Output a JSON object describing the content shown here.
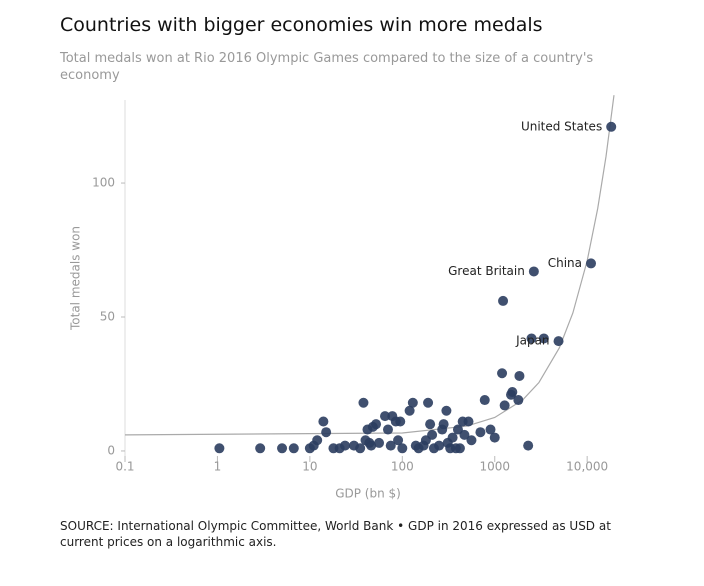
{
  "chart_data": {
    "type": "scatter",
    "title": "Countries with bigger economies win more medals",
    "subtitle": "Total medals won at Rio 2016 Olympic Games compared to the size of a country's economy",
    "x_label": "GDP (bn $)",
    "y_label": "Total medals won",
    "source": "SOURCE: International Olympic Committee, World Bank • GDP in 2016 expressed as USD at current prices on a logarithmic axis.",
    "x_scale": "log",
    "xlim": [
      0.1,
      20000
    ],
    "ylim": [
      -3,
      131
    ],
    "xticks": [
      0.1,
      1,
      10,
      100,
      1000,
      {
        "value": 10000,
        "label": "10,000"
      }
    ],
    "yticks": [
      0,
      50,
      100
    ],
    "color": "#2b3d5f",
    "x": [
      1.05,
      2.9,
      5,
      6.7,
      10,
      11,
      12,
      14,
      15,
      18,
      21,
      24,
      30,
      35,
      38,
      40,
      42,
      44,
      46,
      48,
      52,
      56,
      65,
      70,
      75,
      78,
      85,
      90,
      95,
      100,
      120,
      130,
      140,
      150,
      170,
      180,
      190,
      200,
      210,
      220,
      250,
      270,
      280,
      300,
      310,
      330,
      350,
      380,
      400,
      420,
      450,
      470,
      520,
      560,
      700,
      780,
      900,
      1000,
      1200,
      1230,
      1280,
      1500,
      1550,
      1800,
      1850,
      2300,
      2500,
      3400,
      4900,
      2650,
      11000,
      18200
    ],
    "values": [
      1,
      1,
      1,
      1,
      1,
      2,
      4,
      11,
      7,
      1,
      1,
      2,
      2,
      1,
      18,
      4,
      8,
      3,
      2,
      9,
      10,
      3,
      13,
      8,
      2,
      13,
      11,
      4,
      11,
      1,
      15,
      18,
      2,
      1,
      2,
      4,
      18,
      10,
      6,
      1,
      2,
      8,
      10,
      15,
      3,
      1,
      5,
      1,
      8,
      1,
      11,
      6,
      11,
      4,
      7,
      19,
      8,
      5,
      29,
      56,
      17,
      21,
      22,
      19,
      28,
      2,
      42,
      42,
      41,
      67,
      70,
      121
    ],
    "labels": [
      null,
      null,
      null,
      null,
      null,
      null,
      null,
      null,
      null,
      null,
      null,
      null,
      null,
      null,
      null,
      null,
      null,
      null,
      null,
      null,
      null,
      null,
      null,
      null,
      null,
      null,
      null,
      null,
      null,
      null,
      null,
      null,
      null,
      null,
      null,
      null,
      null,
      null,
      null,
      null,
      null,
      null,
      null,
      null,
      null,
      null,
      null,
      null,
      null,
      null,
      null,
      null,
      null,
      null,
      null,
      null,
      null,
      null,
      null,
      null,
      null,
      null,
      null,
      null,
      null,
      null,
      null,
      null,
      "Japan",
      "Great Britain",
      "China",
      "United States"
    ],
    "trend": {
      "color": "#aaaaaa",
      "x": [
        0.1,
        100,
        500,
        1000,
        2000,
        3000,
        5000,
        7000,
        10000,
        13000,
        16000,
        19500
      ],
      "values": [
        6,
        6.7,
        9.3,
        12.5,
        19,
        25.5,
        38.5,
        51.5,
        71,
        90.5,
        110,
        132.8
      ]
    }
  }
}
